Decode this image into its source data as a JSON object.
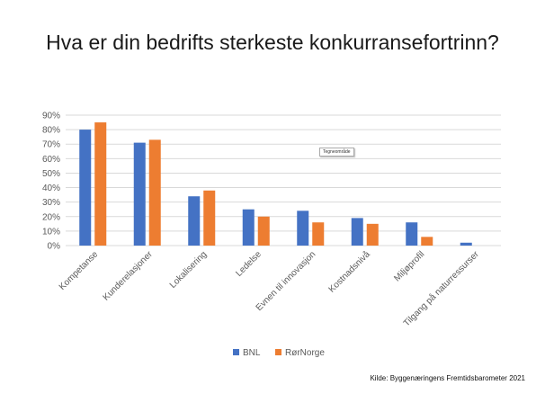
{
  "title": "Hva er din bedrifts sterkeste konkurransefortrinn?",
  "source": "Kilde: Byggenæringens Fremtidsbarometer 2021",
  "tooltip": "Tegneområde",
  "colors": {
    "BNL": "#4472C4",
    "RørNorge": "#ED7D31",
    "grid": "#d9d9d9",
    "text": "#595959"
  },
  "chart_data": {
    "type": "bar",
    "title": "Hva er din bedrifts sterkeste konkurransefortrinn?",
    "categories": [
      "Kompetanse",
      "Kunderelasjoner",
      "Lokalisering",
      "Ledelse",
      "Evnen til innovasjon",
      "Kostnadsnivå",
      "Miljøprofil",
      "Tilgang på naturressurser"
    ],
    "series": [
      {
        "name": "BNL",
        "values": [
          80,
          71,
          34,
          25,
          24,
          19,
          16,
          2
        ]
      },
      {
        "name": "RørNorge",
        "values": [
          85,
          73,
          38,
          20,
          16,
          15,
          6,
          0
        ]
      }
    ],
    "ylim": [
      0,
      90
    ],
    "ytick_labels": [
      "0%",
      "10%",
      "20%",
      "30%",
      "40%",
      "50%",
      "60%",
      "70%",
      "80%",
      "90%"
    ],
    "grid": true,
    "legend": "bottom"
  }
}
